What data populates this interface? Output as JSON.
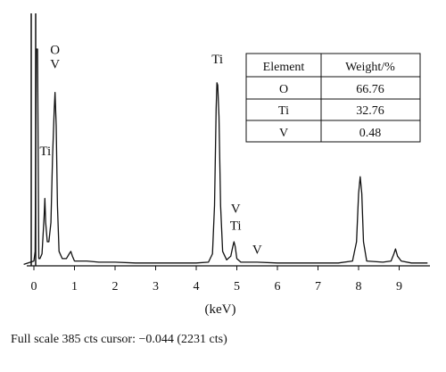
{
  "chart_data": {
    "type": "line",
    "title": "",
    "xlabel": "(keV)",
    "ylabel": "",
    "xlim": [
      -0.25,
      9.7
    ],
    "x_ticks": [
      0,
      1,
      2,
      3,
      4,
      5,
      6,
      7,
      8,
      9
    ],
    "grid": false,
    "legend": "none",
    "colors": {
      "line": "#111111",
      "table_border": "#111111"
    },
    "spectrum": [
      [
        -0.25,
        0.006
      ],
      [
        0.0,
        0.02
      ],
      [
        0.03,
        0.06
      ],
      [
        0.06,
        0.9
      ],
      [
        0.09,
        0.9
      ],
      [
        0.12,
        0.03
      ],
      [
        0.15,
        0.03
      ],
      [
        0.2,
        0.05
      ],
      [
        0.25,
        0.2
      ],
      [
        0.27,
        0.28
      ],
      [
        0.29,
        0.18
      ],
      [
        0.33,
        0.1
      ],
      [
        0.37,
        0.1
      ],
      [
        0.42,
        0.18
      ],
      [
        0.46,
        0.45
      ],
      [
        0.5,
        0.65
      ],
      [
        0.52,
        0.72
      ],
      [
        0.55,
        0.58
      ],
      [
        0.58,
        0.25
      ],
      [
        0.62,
        0.06
      ],
      [
        0.7,
        0.03
      ],
      [
        0.8,
        0.03
      ],
      [
        0.87,
        0.05
      ],
      [
        0.91,
        0.06
      ],
      [
        0.95,
        0.04
      ],
      [
        1.0,
        0.02
      ],
      [
        1.3,
        0.02
      ],
      [
        1.6,
        0.015
      ],
      [
        2.0,
        0.015
      ],
      [
        2.5,
        0.012
      ],
      [
        3.0,
        0.012
      ],
      [
        3.5,
        0.012
      ],
      [
        4.0,
        0.012
      ],
      [
        4.3,
        0.015
      ],
      [
        4.4,
        0.05
      ],
      [
        4.45,
        0.25
      ],
      [
        4.49,
        0.65
      ],
      [
        4.51,
        0.76
      ],
      [
        4.53,
        0.75
      ],
      [
        4.56,
        0.62
      ],
      [
        4.6,
        0.25
      ],
      [
        4.65,
        0.06
      ],
      [
        4.75,
        0.025
      ],
      [
        4.85,
        0.04
      ],
      [
        4.9,
        0.08
      ],
      [
        4.93,
        0.1
      ],
      [
        4.96,
        0.08
      ],
      [
        5.0,
        0.03
      ],
      [
        5.1,
        0.015
      ],
      [
        5.5,
        0.015
      ],
      [
        6.0,
        0.012
      ],
      [
        6.5,
        0.012
      ],
      [
        7.0,
        0.012
      ],
      [
        7.5,
        0.012
      ],
      [
        7.85,
        0.02
      ],
      [
        7.95,
        0.1
      ],
      [
        8.0,
        0.3
      ],
      [
        8.04,
        0.37
      ],
      [
        8.08,
        0.3
      ],
      [
        8.12,
        0.1
      ],
      [
        8.2,
        0.02
      ],
      [
        8.6,
        0.015
      ],
      [
        8.8,
        0.02
      ],
      [
        8.87,
        0.05
      ],
      [
        8.91,
        0.07
      ],
      [
        8.96,
        0.04
      ],
      [
        9.05,
        0.02
      ],
      [
        9.3,
        0.012
      ],
      [
        9.7,
        0.012
      ]
    ],
    "annotations": [
      {
        "text": "O",
        "x": 0.52,
        "y": 0.88
      },
      {
        "text": "V",
        "x": 0.52,
        "y": 0.82
      },
      {
        "text": "Ti",
        "x": 0.28,
        "y": 0.46
      },
      {
        "text": "Ti",
        "x": 4.52,
        "y": 0.84
      },
      {
        "text": "V",
        "x": 4.97,
        "y": 0.22
      },
      {
        "text": "Ti",
        "x": 4.97,
        "y": 0.15
      },
      {
        "text": "V",
        "x": 5.5,
        "y": 0.05
      }
    ]
  },
  "table": {
    "headers": [
      "Element",
      "Weight/%"
    ],
    "rows": [
      [
        "O",
        "66.76"
      ],
      [
        "Ti",
        "32.76"
      ],
      [
        "V",
        "0.48"
      ]
    ]
  },
  "footer": {
    "text": "Full scale 385 cts cursor: −0.044 (2231 cts)"
  }
}
